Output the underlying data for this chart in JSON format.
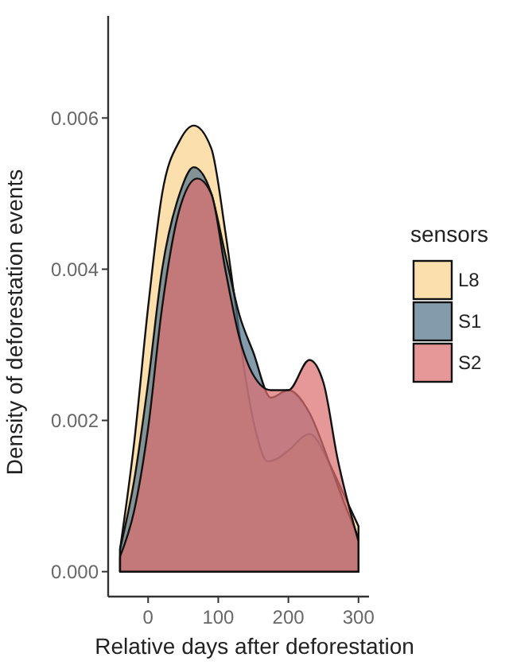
{
  "chart_data": {
    "type": "area",
    "xlabel": "Relative days after deforestation",
    "ylabel": "Density of deforestation events",
    "legend_title": "sensors",
    "legend": "right",
    "grid": false,
    "xlim": [
      -57,
      315
    ],
    "xticks": [
      0,
      100,
      200,
      300
    ],
    "ylim": [
      -0.00033,
      0.00735
    ],
    "yticks": [
      {
        "value": 0,
        "label": "0.000"
      },
      0.002,
      0.004,
      0.006
    ],
    "series": [
      {
        "name": "L8",
        "color": "#f9d28c",
        "x": [
          -40,
          -20,
          0,
          20,
          45,
          65,
          90,
          110,
          125,
          140,
          155,
          170,
          185,
          200,
          230,
          260,
          280,
          300
        ],
        "values": [
          0.0003,
          0.0017,
          0.0035,
          0.005,
          0.0057,
          0.0059,
          0.0056,
          0.0045,
          0.0035,
          0.0025,
          0.0018,
          0.00146,
          0.0015,
          0.0016,
          0.00182,
          0.0014,
          0.001,
          0.0006
        ]
      },
      {
        "name": "S1",
        "color": "#54758a",
        "x": [
          -40,
          -20,
          0,
          20,
          45,
          65,
          90,
          110,
          130,
          150,
          175,
          200,
          230,
          260,
          280,
          300
        ],
        "values": [
          0.0003,
          0.0012,
          0.0025,
          0.004,
          0.005,
          0.00535,
          0.005,
          0.0042,
          0.0034,
          0.0029,
          0.0023,
          0.0024,
          0.0021,
          0.0014,
          0.0009,
          0.00045
        ]
      },
      {
        "name": "S2",
        "color": "#dd6f70",
        "x": [
          -40,
          -20,
          0,
          20,
          45,
          70,
          90,
          110,
          130,
          150,
          175,
          200,
          230,
          250,
          270,
          300
        ],
        "values": [
          0.0002,
          0.0008,
          0.0019,
          0.0035,
          0.0048,
          0.0052,
          0.005,
          0.004,
          0.0031,
          0.0026,
          0.0024,
          0.0024,
          0.0028,
          0.0025,
          0.0015,
          0.0004
        ]
      }
    ]
  }
}
